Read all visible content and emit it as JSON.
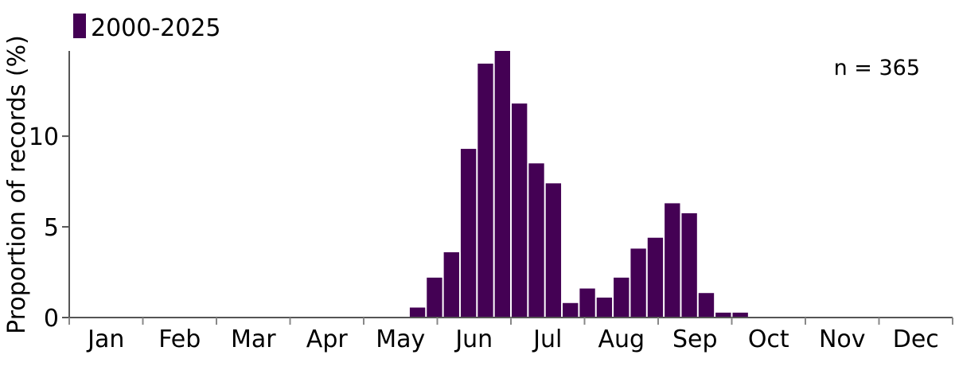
{
  "chart_data": {
    "type": "bar",
    "ylabel": "Proportion of records (%)",
    "xlabel": "",
    "ylim": [
      0,
      14.7
    ],
    "yticks": [
      0,
      5,
      10
    ],
    "months": [
      "Jan",
      "Feb",
      "Mar",
      "Apr",
      "May",
      "Jun",
      "Jul",
      "Aug",
      "Sep",
      "Oct",
      "Nov",
      "Dec"
    ],
    "bin_width_weeks": 1,
    "series": [
      {
        "name": "2000-2025",
        "color": "#440154",
        "bins": [
          {
            "week": 20,
            "value": 0.55
          },
          {
            "week": 21,
            "value": 2.2
          },
          {
            "week": 22,
            "value": 3.6
          },
          {
            "week": 23,
            "value": 9.3
          },
          {
            "week": 24,
            "value": 14.0
          },
          {
            "week": 25,
            "value": 14.7
          },
          {
            "week": 26,
            "value": 11.8
          },
          {
            "week": 27,
            "value": 8.5
          },
          {
            "week": 28,
            "value": 7.4
          },
          {
            "week": 29,
            "value": 0.8
          },
          {
            "week": 30,
            "value": 1.6
          },
          {
            "week": 31,
            "value": 1.1
          },
          {
            "week": 32,
            "value": 2.2
          },
          {
            "week": 33,
            "value": 3.8
          },
          {
            "week": 34,
            "value": 4.4
          },
          {
            "week": 35,
            "value": 6.3
          },
          {
            "week": 36,
            "value": 5.75
          },
          {
            "week": 37,
            "value": 1.35
          },
          {
            "week": 38,
            "value": 0.27
          },
          {
            "week": 39,
            "value": 0.27
          }
        ]
      }
    ],
    "legend": {
      "position": "top-left"
    },
    "annotation": "n = 365",
    "grid": false
  }
}
